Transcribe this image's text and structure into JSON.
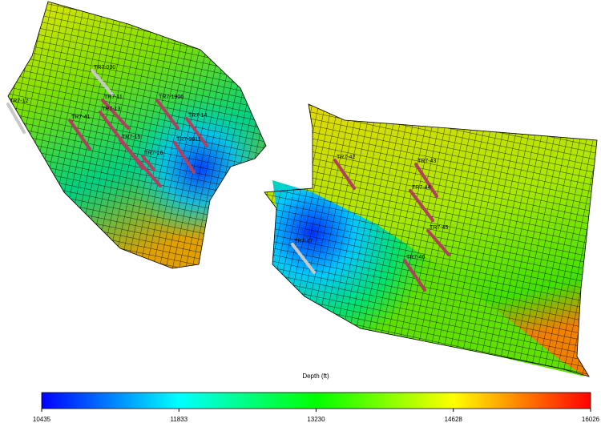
{
  "colorbar": {
    "title": "Depth (ft)",
    "lim": [
      10435,
      16026
    ],
    "ticks": [
      10435,
      11833,
      13230,
      14628,
      16026
    ]
  },
  "wells": [
    {
      "label": "TR7-12"
    },
    {
      "label": "TR7-030"
    },
    {
      "label": "TR7-11"
    },
    {
      "label": "TR7-13"
    },
    {
      "label": "TR7-1906"
    },
    {
      "label": "TR7-14"
    },
    {
      "label": "TR7-15"
    },
    {
      "label": "TR7-16"
    },
    {
      "label": "TR7-3011"
    },
    {
      "label": "TR7-41"
    },
    {
      "label": "TR7-42"
    },
    {
      "label": "TR7-43"
    },
    {
      "label": "TR7-44"
    },
    {
      "label": "TR7-45"
    },
    {
      "label": "TR7-46"
    },
    {
      "label": "TR7-47"
    }
  ]
}
